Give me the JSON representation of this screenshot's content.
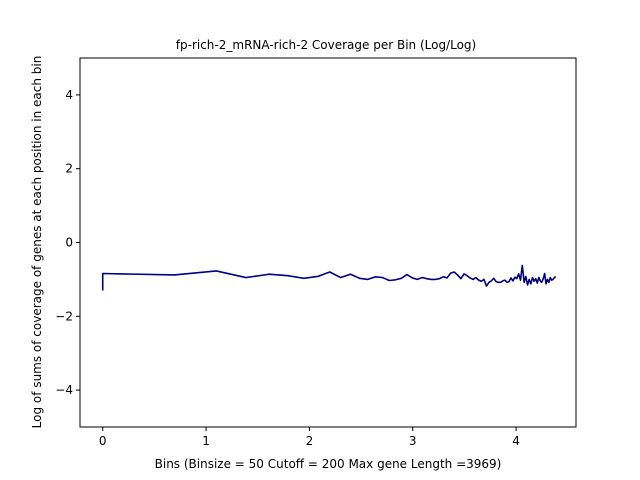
{
  "chart_data": {
    "type": "line",
    "title": "fp-rich-2_mRNA-rich-2 Coverage per Bin (Log/Log)",
    "xlabel": "Bins  (Binsize = 50 Cutoff = 200 Max gene Length =3969)",
    "ylabel": "Log of sums of coverage of genes at each position in each bin",
    "xlim": [
      -0.22,
      4.58
    ],
    "ylim": [
      -5,
      5
    ],
    "xticks": [
      0,
      1,
      2,
      3,
      4
    ],
    "yticks": [
      -4,
      -2,
      0,
      2,
      4
    ],
    "xtick_labels": [
      "0",
      "1",
      "2",
      "3",
      "4"
    ],
    "ytick_labels": [
      "−4",
      "−2",
      "0",
      "2",
      "4"
    ],
    "grid": false,
    "line_color": "#000080",
    "series": [
      {
        "name": "coverage",
        "x": [
          0.0,
          0.0,
          0.693,
          1.099,
          1.386,
          1.609,
          1.792,
          1.946,
          2.079,
          2.197,
          2.303,
          2.398,
          2.485,
          2.565,
          2.639,
          2.708,
          2.773,
          2.833,
          2.89,
          2.944,
          2.996,
          3.045,
          3.091,
          3.135,
          3.178,
          3.219,
          3.258,
          3.296,
          3.332,
          3.367,
          3.401,
          3.434,
          3.466,
          3.497,
          3.526,
          3.555,
          3.584,
          3.611,
          3.638,
          3.664,
          3.689,
          3.714,
          3.738,
          3.761,
          3.784,
          3.807,
          3.829,
          3.85,
          3.871,
          3.892,
          3.912,
          3.932,
          3.951,
          3.97,
          3.989,
          4.007,
          4.025,
          4.043,
          4.06,
          4.078,
          4.094,
          4.111,
          4.127,
          4.143,
          4.159,
          4.174,
          4.19,
          4.205,
          4.22,
          4.234,
          4.248,
          4.263,
          4.277,
          4.29,
          4.304,
          4.317,
          4.331,
          4.344,
          4.357,
          4.369,
          4.382
        ],
        "y": [
          -1.3,
          -0.84,
          -0.88,
          -0.77,
          -0.95,
          -0.86,
          -0.9,
          -0.97,
          -0.92,
          -0.8,
          -0.95,
          -0.86,
          -0.97,
          -1.0,
          -0.93,
          -0.95,
          -1.03,
          -1.01,
          -0.97,
          -0.87,
          -0.96,
          -1.0,
          -0.95,
          -0.98,
          -1.0,
          -1.0,
          -0.98,
          -0.93,
          -0.96,
          -0.83,
          -0.8,
          -0.88,
          -0.98,
          -0.85,
          -0.9,
          -0.96,
          -1.0,
          -0.95,
          -1.02,
          -1.05,
          -1.0,
          -1.18,
          -1.08,
          -1.04,
          -0.97,
          -1.06,
          -1.08,
          -1.08,
          -1.04,
          -1.02,
          -1.08,
          -1.06,
          -0.96,
          -1.04,
          -0.94,
          -0.98,
          -0.85,
          -1.02,
          -0.62,
          -1.08,
          -0.92,
          -1.15,
          -1.0,
          -1.12,
          -0.95,
          -1.05,
          -0.98,
          -1.1,
          -0.95,
          -1.04,
          -1.08,
          -0.98,
          -0.84,
          -1.12,
          -1.0,
          -1.08,
          -0.95,
          -1.02,
          -1.0,
          -0.96,
          -0.92
        ]
      }
    ]
  }
}
